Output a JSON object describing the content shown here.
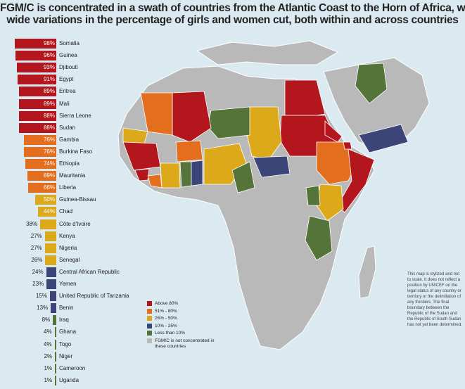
{
  "title": {
    "line1": "FGM/C is concentrated in a swath of countries from the Atlantic Coast to the Horn of Africa, with",
    "line2": "wide variations in the percentage of girls and women cut, both within and across countries"
  },
  "chart_data": {
    "type": "bar",
    "orientation": "horizontal",
    "categories": [
      "Somalia",
      "Guinea",
      "Djibouti",
      "Egypt",
      "Eritrea",
      "Mali",
      "Sierra Leone",
      "Sudan",
      "Gambia",
      "Burkina Faso",
      "Ethiopia",
      "Mauritania",
      "Liberia",
      "Guinea-Bissau",
      "Chad",
      "Côte d'Ivoire",
      "Kenya",
      "Nigeria",
      "Senegal",
      "Central African Republic",
      "Yemen",
      "United Republic of Tanzania",
      "Benin",
      "Iraq",
      "Ghana",
      "Togo",
      "Niger",
      "Cameroon",
      "Uganda"
    ],
    "values": [
      98,
      96,
      93,
      91,
      89,
      89,
      88,
      88,
      76,
      76,
      74,
      69,
      66,
      50,
      44,
      38,
      27,
      27,
      26,
      24,
      23,
      15,
      13,
      8,
      4,
      4,
      2,
      1,
      1
    ],
    "value_labels": [
      "98%",
      "96%",
      "93%",
      "91%",
      "89%",
      "89%",
      "88%",
      "88%",
      "76%",
      "76%",
      "74%",
      "69%",
      "66%",
      "50%",
      "44%",
      "38%",
      "27%",
      "27%",
      "26%",
      "24%",
      "23%",
      "15%",
      "13%",
      "8%",
      "4%",
      "4%",
      "2%",
      "1%",
      "1%"
    ],
    "categories_colors": [
      "#b3161c",
      "#b3161c",
      "#b3161c",
      "#b3161c",
      "#b3161c",
      "#b3161c",
      "#b3161c",
      "#b3161c",
      "#e36f1e",
      "#e36f1e",
      "#e36f1e",
      "#e36f1e",
      "#e36f1e",
      "#dba919",
      "#dba919",
      "#dba919",
      "#dba919",
      "#dba919",
      "#dba919",
      "#3b4578",
      "#3b4578",
      "#3b4578",
      "#3b4578",
      "#55743a",
      "#55743a",
      "#55743a",
      "#55743a",
      "#55743a",
      "#55743a"
    ],
    "xlim": [
      0,
      100
    ]
  },
  "legend": {
    "items": [
      {
        "label": "Above 80%",
        "color": "#b3161c"
      },
      {
        "label": "51% - 80%",
        "color": "#e36f1e"
      },
      {
        "label": "26% - 50%",
        "color": "#dba919"
      },
      {
        "label": "10% - 25%",
        "color": "#3b4578"
      },
      {
        "label": "Less than 10%",
        "color": "#55743a"
      },
      {
        "label": "FGM/C is not concentrated in these countries",
        "color": "#b9b9b9"
      }
    ]
  },
  "note": "This map is stylized and not to scale. It does not reflect a position by UNICEF on the legal status of any country or territory or the delimitation of any frontiers. The final boundary between the Republic of the Sudan and the Republic of South Sudan has not yet been determined.",
  "map_colors": {
    "land": "#b9b9b9",
    "water": "#dbe9f1",
    "border": "#ffffff"
  }
}
